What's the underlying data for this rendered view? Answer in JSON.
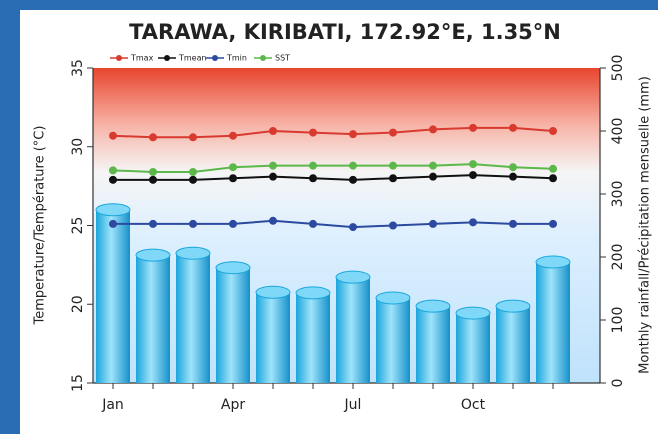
{
  "chart_data": {
    "type": "combo",
    "title": "TARAWA, KIRIBATI, 172.92°E, 1.35°N",
    "ylabel": "Temperature/Température (°C)",
    "y2label": "Monthly rainfall/Précipitation mensuelle (mm)",
    "categories": [
      "Jan",
      null,
      null,
      "Apr",
      null,
      null,
      "Jul",
      null,
      null,
      "Oct",
      null,
      null
    ],
    "ylim": [
      15,
      35
    ],
    "yticks": [
      15,
      20,
      25,
      30,
      35
    ],
    "y2lim": [
      0,
      500
    ],
    "y2ticks": [
      0,
      100,
      200,
      300,
      400,
      500
    ],
    "legend": "top",
    "series": [
      {
        "type": "bar",
        "axis": "y2",
        "color": "#29b6e8",
        "values": [
          275,
          203,
          206,
          183,
          144,
          143,
          168,
          135,
          122,
          111,
          122,
          192
        ]
      },
      {
        "type": "line",
        "name": "Tmax",
        "color": "#d93a2f",
        "values": [
          30.7,
          30.6,
          30.6,
          30.7,
          31.0,
          30.9,
          30.8,
          30.9,
          31.1,
          31.2,
          31.2,
          31.0
        ]
      },
      {
        "type": "line",
        "name": "Tmean",
        "color": "#111111",
        "values": [
          27.9,
          27.9,
          27.9,
          28.0,
          28.1,
          28.0,
          27.9,
          28.0,
          28.1,
          28.2,
          28.1,
          28.0
        ]
      },
      {
        "type": "line",
        "name": "Tmin",
        "color": "#2c4aa0",
        "values": [
          25.1,
          25.1,
          25.1,
          25.1,
          25.3,
          25.1,
          24.9,
          25.0,
          25.1,
          25.2,
          25.1,
          25.1
        ]
      },
      {
        "type": "line",
        "name": "SST",
        "color": "#5cb84a",
        "values": [
          28.5,
          28.4,
          28.4,
          28.7,
          28.8,
          28.8,
          28.8,
          28.8,
          28.8,
          28.9,
          28.7,
          28.6
        ]
      }
    ]
  }
}
